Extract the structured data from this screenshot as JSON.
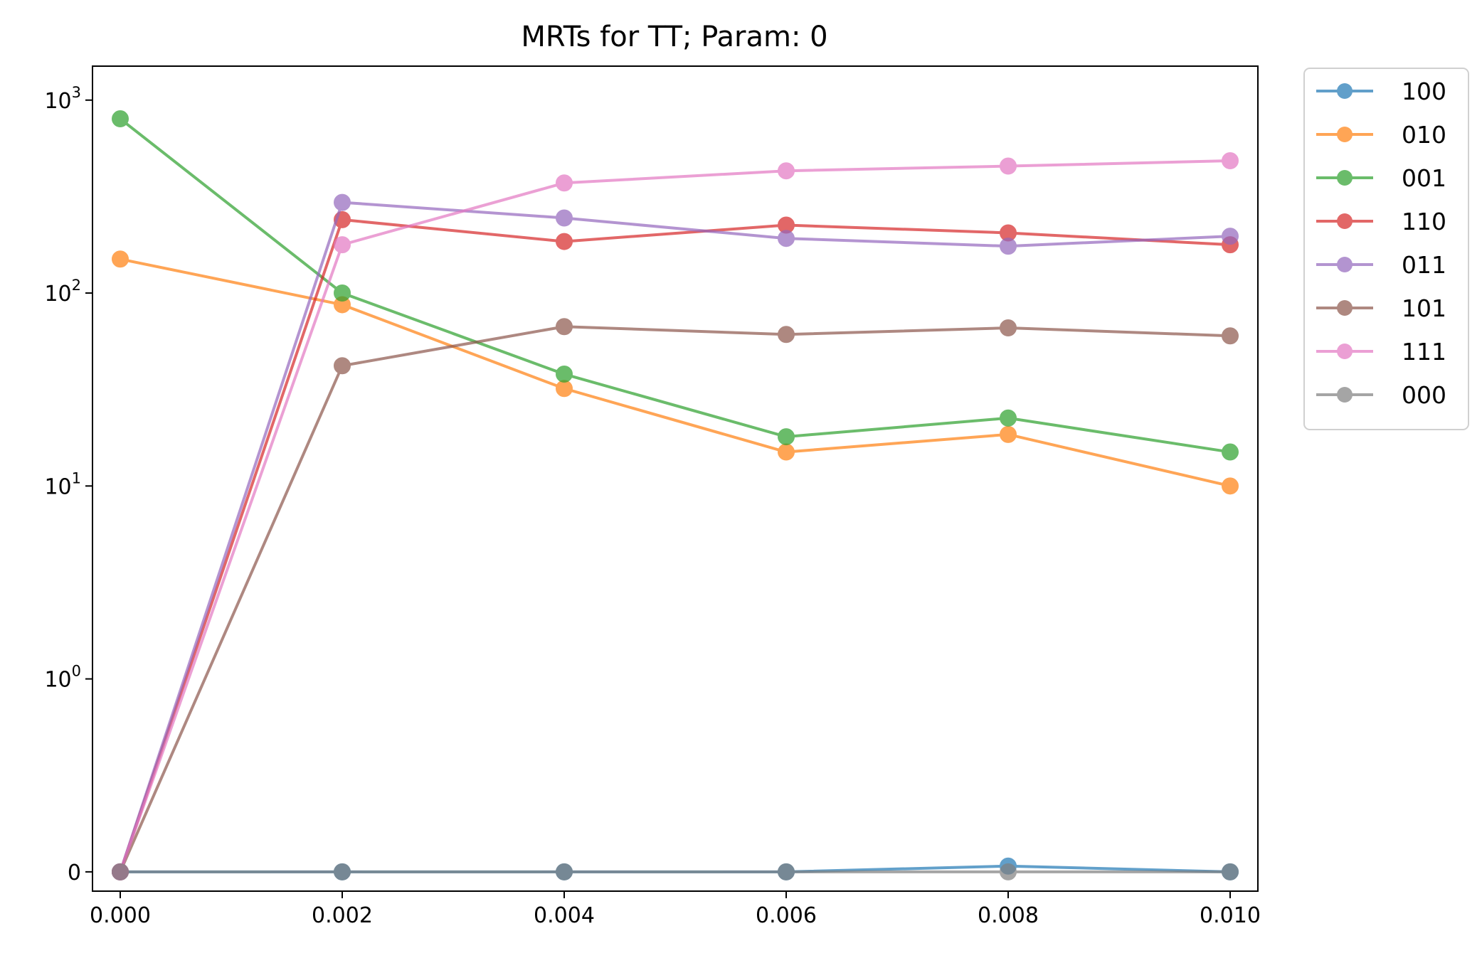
{
  "chart_data": {
    "type": "line",
    "title": "MRTs for TT; Param: 0",
    "xlabel": "",
    "ylabel": "",
    "xscale": "linear",
    "yscale": "symlog",
    "x": [
      0.0,
      0.002,
      0.004,
      0.006,
      0.008,
      0.01
    ],
    "x_tick_labels": [
      "0.000",
      "0.002",
      "0.004",
      "0.006",
      "0.008",
      "0.010"
    ],
    "xlim": [
      -0.00025,
      0.01025
    ],
    "y_ticks": [
      {
        "value": 0,
        "base": "0",
        "exp": ""
      },
      {
        "value": 1,
        "base": "10",
        "exp": "0"
      },
      {
        "value": 10,
        "base": "10",
        "exp": "1"
      },
      {
        "value": 100,
        "base": "10",
        "exp": "2"
      },
      {
        "value": 1000,
        "base": "10",
        "exp": "3"
      }
    ],
    "ylim": [
      -0.1,
      1500
    ],
    "grid": false,
    "legend_position": "outside-right-top",
    "series": [
      {
        "name": "100",
        "color": "#1f77b4",
        "values": [
          0,
          0,
          0,
          0,
          0.03,
          0
        ]
      },
      {
        "name": "010",
        "color": "#ff7f0e",
        "values": [
          150,
          87,
          32,
          15,
          18.5,
          10
        ]
      },
      {
        "name": "001",
        "color": "#2ca02c",
        "values": [
          800,
          100,
          38,
          18,
          22.5,
          15
        ]
      },
      {
        "name": "110",
        "color": "#d62728",
        "values": [
          0,
          240,
          185,
          225,
          205,
          178
        ]
      },
      {
        "name": "011",
        "color": "#9467bd",
        "values": [
          0,
          295,
          245,
          192,
          175,
          197
        ]
      },
      {
        "name": "101",
        "color": "#8c564b",
        "values": [
          0,
          42,
          67,
          61,
          66,
          60
        ]
      },
      {
        "name": "111",
        "color": "#e377c2",
        "values": [
          0,
          178,
          372,
          430,
          455,
          485
        ]
      },
      {
        "name": "000",
        "color": "#7f7f7f",
        "values": [
          0,
          0,
          0,
          0,
          0,
          0
        ]
      }
    ]
  }
}
